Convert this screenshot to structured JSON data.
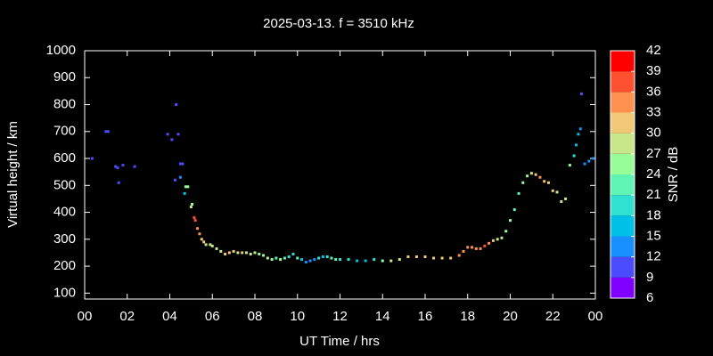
{
  "chart_data": {
    "type": "scatter",
    "title": "2025-03-13. f = 3510 kHz",
    "x_label": "UT Time / hrs",
    "y_label": "Virtual height / km",
    "xlim": [
      0,
      24
    ],
    "xticks": [
      {
        "value": 0,
        "label": "00"
      },
      {
        "value": 2,
        "label": "02"
      },
      {
        "value": 4,
        "label": "04"
      },
      {
        "value": 6,
        "label": "06"
      },
      {
        "value": 8,
        "label": "08"
      },
      10,
      12,
      14,
      16,
      18,
      20,
      22,
      {
        "value": 24,
        "label": "00"
      }
    ],
    "ylim": [
      78,
      1000
    ],
    "yticks": [
      100,
      200,
      300,
      400,
      500,
      600,
      700,
      800,
      900,
      1000
    ],
    "x": [
      0.35,
      1.0,
      1.1,
      1.45,
      1.55,
      1.6,
      1.8,
      2.35,
      3.9,
      4.1,
      4.3,
      4.4,
      4.25,
      4.5,
      4.6,
      4.5,
      4.75,
      4.7,
      4.85,
      5.0,
      5.05,
      5.15,
      5.2,
      5.3,
      5.4,
      5.5,
      5.6,
      5.7,
      5.9,
      6.0,
      6.2,
      6.4,
      6.6,
      6.8,
      7.0,
      7.2,
      7.4,
      7.6,
      7.8,
      8.0,
      8.2,
      8.4,
      8.6,
      8.8,
      9.0,
      9.2,
      9.4,
      9.6,
      9.8,
      10.0,
      10.2,
      10.4,
      10.6,
      10.8,
      11.0,
      11.2,
      11.4,
      11.6,
      11.8,
      12.0,
      12.4,
      12.8,
      13.2,
      13.6,
      14.0,
      14.4,
      14.8,
      15.2,
      15.6,
      16.0,
      16.4,
      16.8,
      17.2,
      17.6,
      17.8,
      18.0,
      18.2,
      18.4,
      18.6,
      18.8,
      19.0,
      19.2,
      19.4,
      19.6,
      19.8,
      20.0,
      20.2,
      20.4,
      20.6,
      20.8,
      21.0,
      21.2,
      21.4,
      21.6,
      21.8,
      22.0,
      22.2,
      22.4,
      22.6,
      22.8,
      23.0,
      23.1,
      23.2,
      23.3,
      23.35,
      23.5,
      23.7,
      23.9
    ],
    "values": [
      600,
      700,
      700,
      570,
      565,
      510,
      575,
      570,
      690,
      670,
      800,
      690,
      520,
      580,
      580,
      530,
      495,
      470,
      495,
      420,
      430,
      380,
      370,
      340,
      320,
      300,
      290,
      280,
      280,
      275,
      265,
      255,
      245,
      250,
      255,
      250,
      250,
      250,
      245,
      250,
      245,
      240,
      230,
      225,
      230,
      225,
      230,
      235,
      245,
      230,
      225,
      215,
      220,
      225,
      230,
      235,
      235,
      230,
      225,
      225,
      225,
      220,
      220,
      225,
      220,
      220,
      225,
      235,
      235,
      235,
      230,
      230,
      230,
      240,
      255,
      270,
      270,
      265,
      265,
      275,
      285,
      295,
      300,
      305,
      330,
      370,
      410,
      470,
      510,
      535,
      545,
      540,
      530,
      515,
      510,
      480,
      475,
      440,
      450,
      575,
      610,
      650,
      690,
      710,
      840,
      580,
      590,
      600
    ],
    "snr": [
      10,
      10,
      10,
      10,
      11,
      11,
      10,
      10,
      10,
      10,
      10,
      10,
      10,
      11,
      11,
      12,
      24,
      16,
      26,
      27,
      26,
      37,
      36,
      34,
      33,
      31,
      30,
      28,
      29,
      28,
      27,
      28,
      31,
      30,
      30,
      29,
      31,
      29,
      28,
      29,
      24,
      26,
      28,
      25,
      23,
      24,
      21,
      19,
      20,
      22,
      17,
      14,
      12,
      13,
      19,
      17,
      20,
      22,
      21,
      20,
      18,
      15,
      16,
      19,
      24,
      27,
      29,
      31,
      30,
      32,
      31,
      31,
      32,
      33,
      34,
      35,
      34,
      33,
      35,
      36,
      33,
      31,
      29,
      28,
      26,
      24,
      23,
      22,
      24,
      26,
      28,
      32,
      33,
      32,
      31,
      30,
      29,
      27,
      28,
      25,
      20,
      17,
      16,
      14,
      10,
      14,
      13,
      12
    ],
    "colorbar": {
      "label": "SNR / dB",
      "lim": [
        6,
        42
      ],
      "ticks": [
        6,
        9,
        12,
        15,
        18,
        21,
        24,
        27,
        30,
        33,
        36,
        39,
        42
      ],
      "colors": [
        "#8000ff",
        "#4c4cff",
        "#1890ff",
        "#00c0e8",
        "#30e0d0",
        "#60f4b4",
        "#98fc98",
        "#c8e68a",
        "#f0c878",
        "#ff9050",
        "#ff5030",
        "#ff0000"
      ]
    }
  }
}
